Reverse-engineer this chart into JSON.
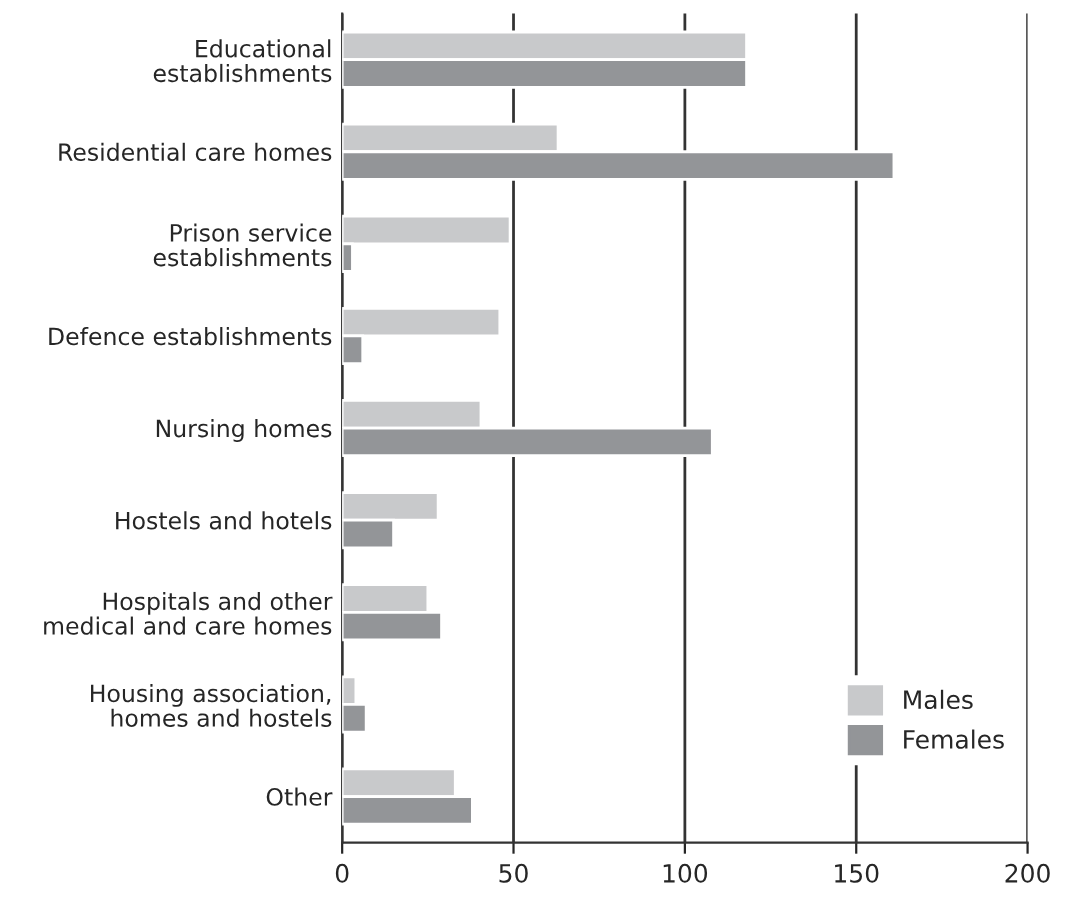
{
  "chart_data": {
    "type": "bar",
    "orientation": "horizontal",
    "categories": [
      "Educational\nestablishments",
      "Residential care homes",
      "Prison service\nestablishments",
      "Defence establishments",
      "Nursing homes",
      "Hostels and hotels",
      "Hospitals and other\nmedical and care homes",
      "Housing association,\nhomes and hostels",
      "Other"
    ],
    "series": [
      {
        "name": "Males",
        "color": "#c8c9cb",
        "values": [
          118,
          63,
          49,
          46,
          40.5,
          28,
          25,
          4,
          33
        ]
      },
      {
        "name": "Females",
        "color": "#939598",
        "values": [
          118,
          161,
          3,
          6,
          108,
          15,
          29,
          7,
          38
        ]
      }
    ],
    "xlim": [
      0,
      200
    ],
    "xticks": [
      0,
      50,
      100,
      150,
      200
    ],
    "grid": "x",
    "legend": "bottom right"
  }
}
